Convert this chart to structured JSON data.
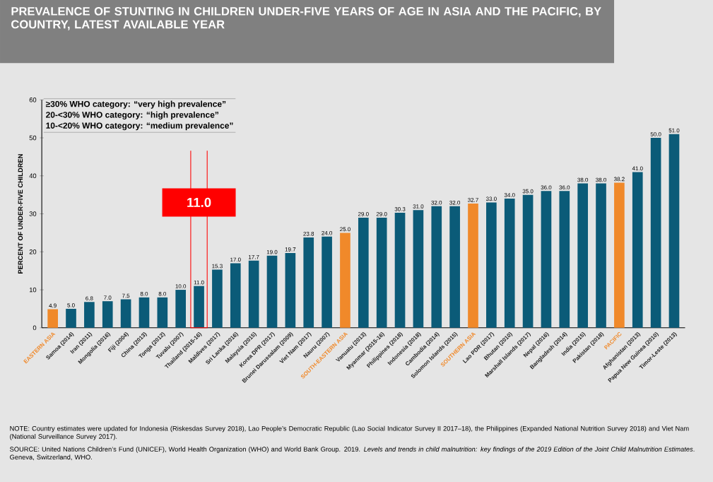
{
  "chart_data": {
    "type": "bar",
    "title": "PREVALENCE OF STUNTING IN CHILDREN UNDER-FIVE YEARS OF AGE IN ASIA AND THE PACIFIC, BY COUNTRY, LATEST AVAILABLE YEAR",
    "ylabel": "PERCENT OF UNDER-FIVE CHILDREN",
    "categories": [
      "EASTERN ASIA",
      "Samoa (2014)",
      "Iran (2011)",
      "Mongolia (2016)",
      "Fiji (2004)",
      "China (2013)",
      "Tonga (2012)",
      "Tuvalu (2007)",
      "Thailand (2015-16)",
      "Maldives (2017)",
      "Sri Lanka (2016)",
      "Malaysia (2015)",
      "Korea DPR (2017)",
      "Brunei Darussalam (2009)",
      "Viet Nam (2017)",
      "Nauru (2007)",
      "SOUTH-EASTERN ASIA",
      "Vanuatu (2013)",
      "Myanmar (2015-16)",
      "Philippines (2018)",
      "Indonesia (2018)",
      "Cambodia (2014)",
      "Solomon Islands (2015)",
      "SOUTHERN ASIA",
      "Lao PDR (2017)",
      "Bhutan (2010)",
      "Marshall Islands (2017)",
      "Nepal (2016)",
      "Bangladesh (2014)",
      "India (2015)",
      "Pakistan (2018)",
      "PACIFIC",
      "Afghanistan (2013)",
      "Papua New Guinea (2010)",
      "Timor-Leste (2013)"
    ],
    "values": [
      4.9,
      5.0,
      6.8,
      7.0,
      7.5,
      8.0,
      8.0,
      10.0,
      11.0,
      15.3,
      17.0,
      17.7,
      19.0,
      19.7,
      23.8,
      24.0,
      25.0,
      29.0,
      29.0,
      30.3,
      31.0,
      32.0,
      32.0,
      32.7,
      33.0,
      34.0,
      35.0,
      36.0,
      36.0,
      38.0,
      38.0,
      38.2,
      41.0,
      50.0,
      51.0
    ],
    "value_labels": [
      "4.9",
      "5.0",
      "6.8",
      "7.0",
      "7.5",
      "8.0",
      "8.0",
      "10.0",
      "11.0",
      "15.3",
      "17.0",
      "17.7",
      "19.0",
      "19.7",
      "23.8",
      "24.0",
      "25.0",
      "29.0",
      "29.0",
      "30.3",
      "31.0",
      "32.0",
      "32.0",
      "32.7",
      "33.0",
      "34.0",
      "35.0",
      "36.0",
      "36.0",
      "38.0",
      "38.0",
      "38.2",
      "41.0",
      "50.0",
      "51.0"
    ],
    "colors": [
      "#f0892a",
      "#0b5b78",
      "#0b5b78",
      "#0b5b78",
      "#0b5b78",
      "#0b5b78",
      "#0b5b78",
      "#0b5b78",
      "#0b5b78",
      "#0b5b78",
      "#0b5b78",
      "#0b5b78",
      "#0b5b78",
      "#0b5b78",
      "#0b5b78",
      "#0b5b78",
      "#f0892a",
      "#0b5b78",
      "#0b5b78",
      "#0b5b78",
      "#0b5b78",
      "#0b5b78",
      "#0b5b78",
      "#f0892a",
      "#0b5b78",
      "#0b5b78",
      "#0b5b78",
      "#0b5b78",
      "#0b5b78",
      "#0b5b78",
      "#0b5b78",
      "#f0892a",
      "#0b5b78",
      "#0b5b78",
      "#0b5b78"
    ],
    "ylim": [
      0,
      60
    ],
    "yticks": [
      0,
      10,
      20,
      30,
      40,
      50,
      60
    ],
    "annotations": [
      "≥30%     WHO category: “very high prevalence”",
      "20-<30%  WHO category: “high prevalence”",
      "10-<20%  WHO category: “medium prevalence”",
      "11.0",
      "NOTE: Country estimates were updated for Indonesia (Riskesdas Survey 2018), Lao People’s Democratic Republic (Lao Social Indicator Survey II 2017–18), the Philippines (Expanded National Nutrition Survey 2018) and Viet Nam (National Surveillance Survey 2017).",
      "SOURCE: United Nations Children’s Fund (UNICEF), World Health Organization (WHO) and World Bank Group. 2019. *Levels and trends in child malnutrition: key findings of the 2019 Edition of the Joint Child Malnutrition Estimates*. Geneva, Switzerland, WHO."
    ],
    "grid": false
  }
}
